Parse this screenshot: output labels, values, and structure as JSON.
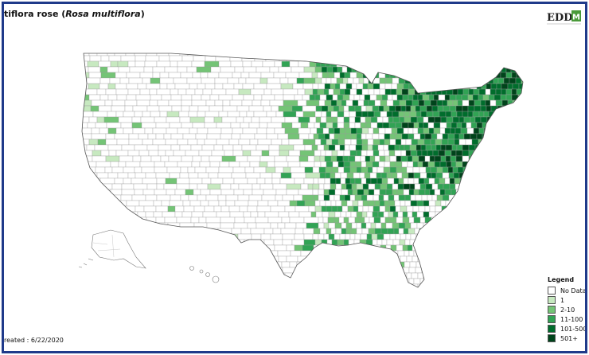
{
  "title": {
    "prefix": "tiflora rose (",
    "scientific": "Rosa multiflora",
    "suffix": ")"
  },
  "logo": {
    "text": "EDD",
    "mark": "M"
  },
  "legend": {
    "title": "Legend",
    "items": [
      {
        "label": "No Data",
        "color": "#ffffff"
      },
      {
        "label": "1",
        "color": "#c7e9c0"
      },
      {
        "label": "2-10",
        "color": "#74c476"
      },
      {
        "label": "11-100",
        "color": "#31a354"
      },
      {
        "label": "101-500",
        "color": "#006d2c"
      },
      {
        "label": "501+",
        "color": "#00441b"
      }
    ]
  },
  "created": "reated : 6/22/2020"
}
